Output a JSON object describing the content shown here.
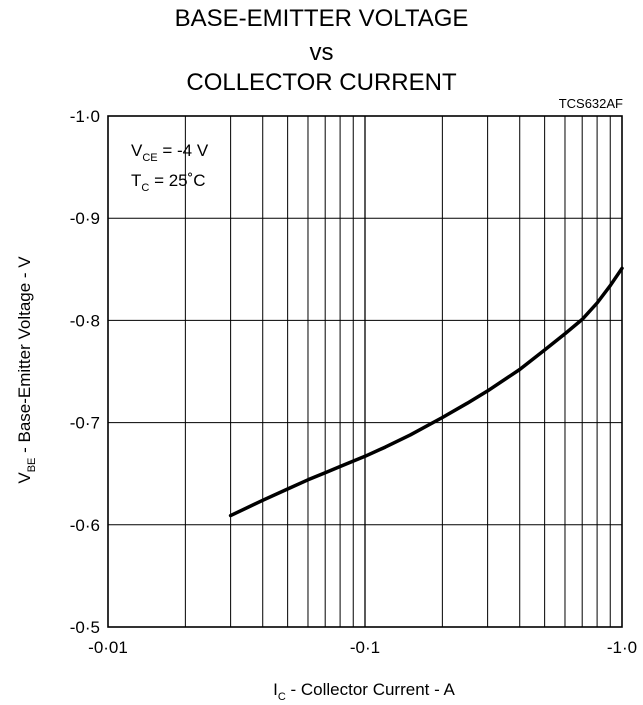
{
  "chart_data": {
    "type": "line",
    "title_lines": [
      "BASE-EMITTER VOLTAGE",
      "vs",
      "COLLECTOR CURRENT"
    ],
    "figure_code": "TCS632AF",
    "conditions": [
      {
        "sym": "V",
        "sub": "CE",
        "rest": " = -4 V"
      },
      {
        "sym": "T",
        "sub": "C",
        "rest": " = 25˚C"
      }
    ],
    "xlabel": {
      "sym": "I",
      "sub": "C",
      "rest": " - Collector Current - A"
    },
    "ylabel": {
      "sym": "V",
      "sub": "BE",
      "rest": " - Base-Emitter Voltage - V"
    },
    "x_scale": "log",
    "xlim": [
      0.01,
      1.0
    ],
    "ylim": [
      0.5,
      1.0
    ],
    "x_ticks": [
      {
        "v": 0.01,
        "label": "-0·01"
      },
      {
        "v": 0.1,
        "label": "-0·1"
      },
      {
        "v": 1.0,
        "label": "-1·0"
      }
    ],
    "y_ticks": [
      {
        "v": 0.5,
        "label": "-0·5"
      },
      {
        "v": 0.6,
        "label": "-0·6"
      },
      {
        "v": 0.7,
        "label": "-0·7"
      },
      {
        "v": 0.8,
        "label": "-0·8"
      },
      {
        "v": 0.9,
        "label": "-0·9"
      },
      {
        "v": 1.0,
        "label": "-1·0"
      }
    ],
    "grid": true,
    "series": [
      {
        "x": [
          0.03,
          0.04,
          0.05,
          0.06,
          0.07,
          0.08,
          0.1,
          0.12,
          0.15,
          0.2,
          0.25,
          0.3,
          0.4,
          0.5,
          0.6,
          0.7,
          0.8,
          0.9,
          1.0
        ],
        "y": [
          0.609,
          0.624,
          0.635,
          0.644,
          0.651,
          0.657,
          0.667,
          0.676,
          0.688,
          0.705,
          0.719,
          0.731,
          0.752,
          0.771,
          0.787,
          0.801,
          0.817,
          0.834,
          0.851
        ]
      }
    ]
  }
}
